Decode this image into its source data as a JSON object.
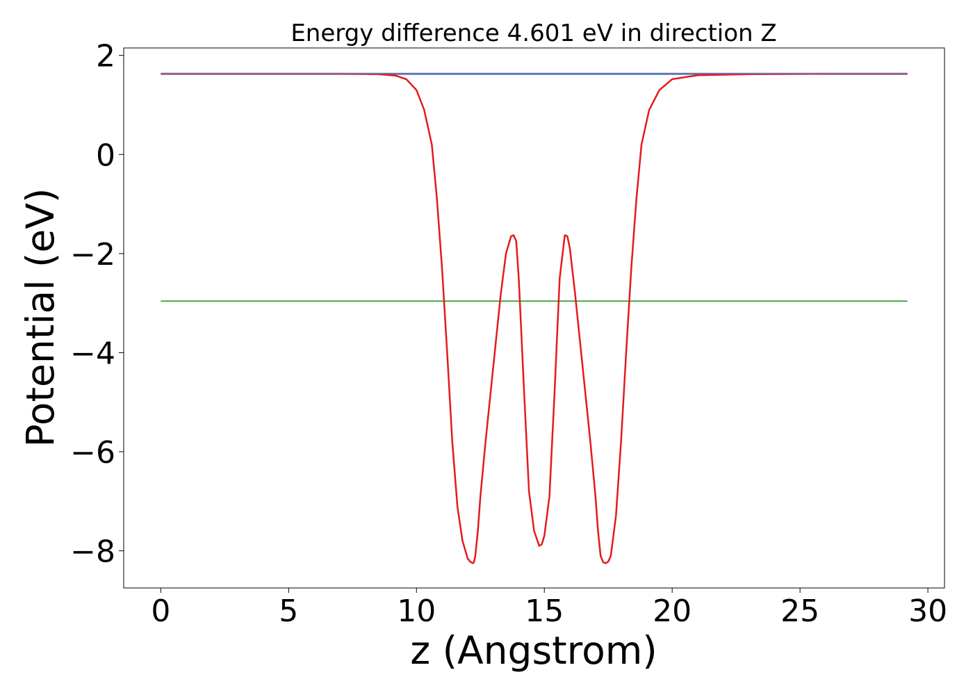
{
  "chart_data": {
    "type": "line",
    "title": "Energy difference 4.601 eV in direction Z",
    "xlabel": "z (Angstrom)",
    "ylabel": "Potential (eV)",
    "xlim": [
      -1.45,
      30.65
    ],
    "ylim": [
      -8.75,
      2.15
    ],
    "xticks": [
      0,
      5,
      10,
      15,
      20,
      25,
      30
    ],
    "xtick_labels": [
      "0",
      "5",
      "10",
      "15",
      "20",
      "25",
      "30"
    ],
    "yticks": [
      -8,
      -6,
      -4,
      -2,
      0,
      2
    ],
    "ytick_labels": [
      "−8",
      "−6",
      "−4",
      "−2",
      "0",
      "2"
    ],
    "grid": false,
    "series": [
      {
        "color": "#1f77b4",
        "x": [
          0,
          29.2
        ],
        "y": [
          1.62,
          1.62
        ]
      },
      {
        "color": "#2ca02c",
        "x": [
          0,
          29.2
        ],
        "y": [
          -2.96,
          -2.96
        ]
      },
      {
        "color": "#e41a1c",
        "x": [
          0,
          7,
          8.5,
          9.2,
          9.6,
          10.0,
          10.3,
          10.6,
          10.8,
          11.0,
          11.2,
          11.4,
          11.6,
          11.8,
          12.0,
          12.1,
          12.2,
          12.25,
          12.3,
          12.4,
          12.5,
          12.7,
          13.0,
          13.3,
          13.5,
          13.7,
          13.8,
          13.9,
          14.0,
          14.2,
          14.4,
          14.6,
          14.8,
          14.9,
          15.0,
          15.2,
          15.4,
          15.6,
          15.8,
          15.9,
          16.0,
          16.2,
          16.5,
          16.8,
          17.0,
          17.1,
          17.2,
          17.3,
          17.4,
          17.5,
          17.6,
          17.8,
          18.0,
          18.2,
          18.4,
          18.6,
          18.8,
          19.1,
          19.5,
          20.0,
          21.0,
          23.0,
          26.0,
          29.2
        ],
        "y": [
          1.63,
          1.63,
          1.62,
          1.59,
          1.52,
          1.3,
          0.9,
          0.2,
          -0.9,
          -2.3,
          -4.0,
          -5.8,
          -7.1,
          -7.8,
          -8.15,
          -8.22,
          -8.25,
          -8.23,
          -8.1,
          -7.6,
          -6.9,
          -5.8,
          -4.3,
          -2.8,
          -2.0,
          -1.65,
          -1.63,
          -1.75,
          -2.5,
          -4.7,
          -6.8,
          -7.6,
          -7.9,
          -7.87,
          -7.7,
          -6.9,
          -4.8,
          -2.5,
          -1.63,
          -1.65,
          -1.9,
          -2.8,
          -4.3,
          -5.8,
          -6.9,
          -7.6,
          -8.1,
          -8.23,
          -8.25,
          -8.22,
          -8.1,
          -7.3,
          -5.8,
          -4.0,
          -2.3,
          -0.9,
          0.2,
          0.9,
          1.3,
          1.52,
          1.6,
          1.62,
          1.63,
          1.63
        ]
      },
      {
        "color": "#7570b3",
        "x": [
          0,
          29.2
        ],
        "y": [
          1.635,
          1.635
        ]
      }
    ]
  }
}
